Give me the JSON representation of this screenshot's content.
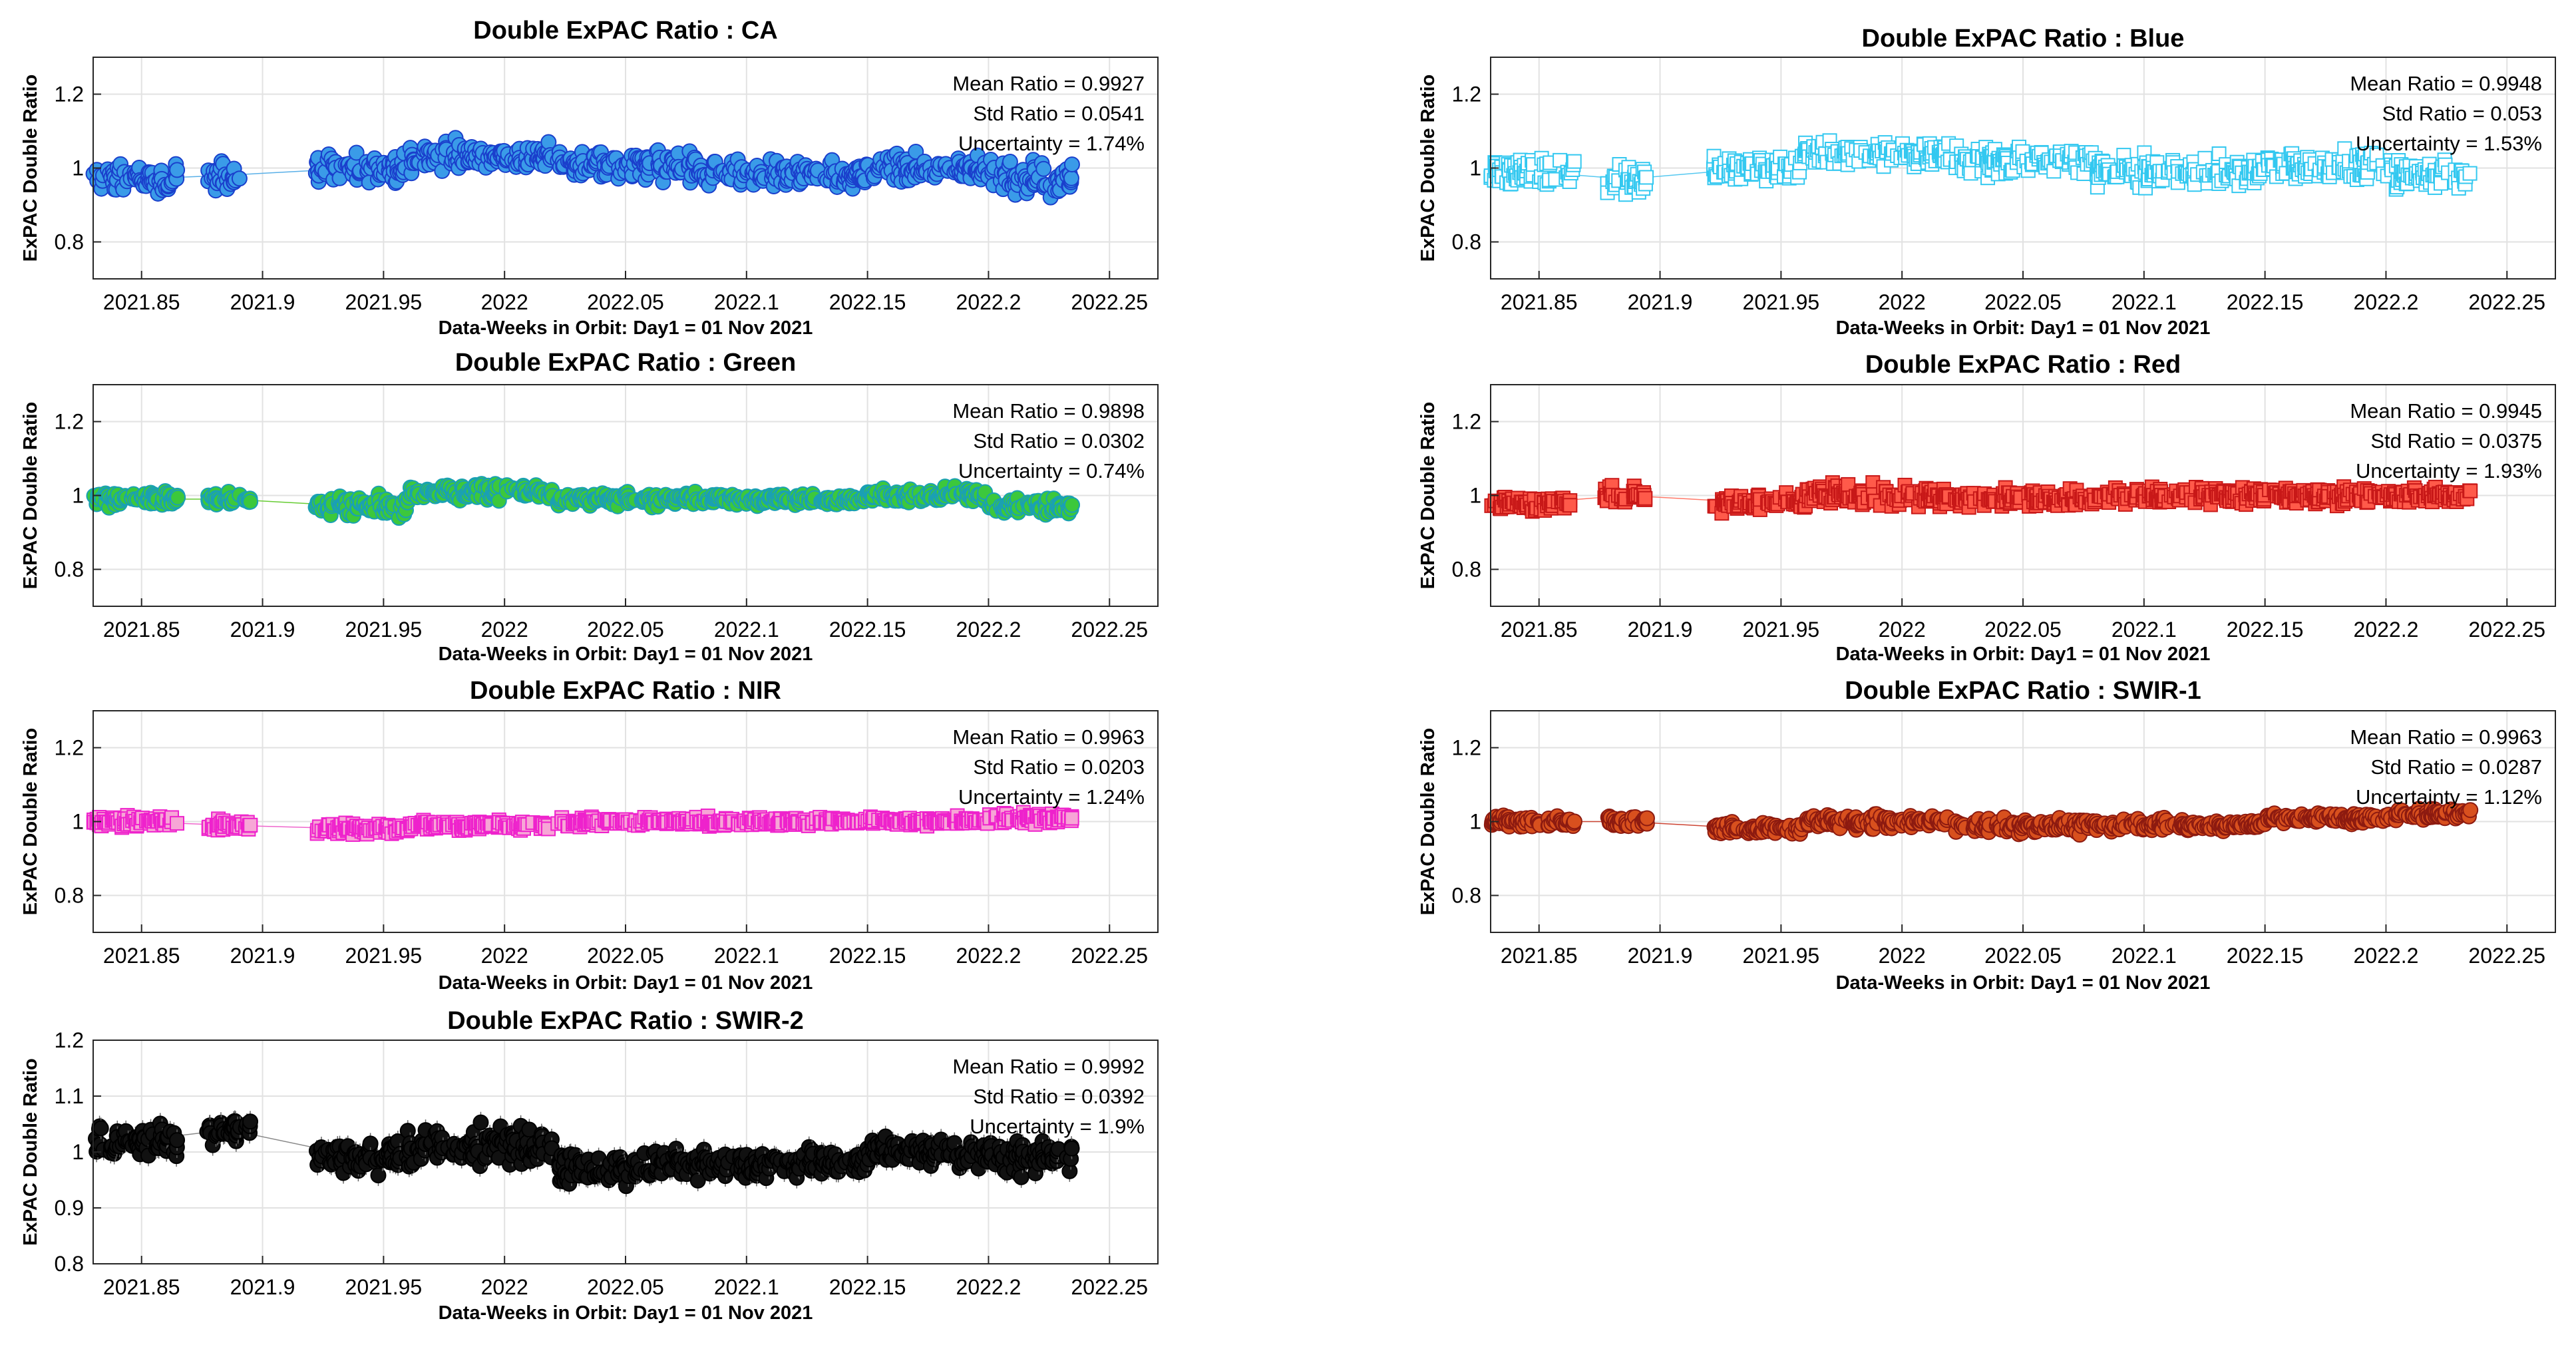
{
  "figure": {
    "title_prefix": "Double ExPAC Ratio :",
    "xlabel": "Data-Weeks in Orbit: Day1 = 01 Nov 2021",
    "ylabel": "ExPAC Double Ratio"
  },
  "chart_data": [
    {
      "type": "scatter",
      "band": "CA",
      "title": "Double ExPAC Ratio :   CA",
      "xlabel": "Data-Weeks in Orbit: Day1 = 01 Nov 2021",
      "ylabel": "ExPAC Double Ratio",
      "xlim": [
        2021.83,
        2022.27
      ],
      "ylim": [
        0.7,
        1.3
      ],
      "xticks": [
        2021.85,
        2021.9,
        2021.95,
        2022,
        2022.05,
        2022.1,
        2022.15,
        2022.2,
        2022.25
      ],
      "xticklabels": [
        "2021.85",
        "2021.9",
        "2021.95",
        "2022",
        "2022.05",
        "2022.1",
        "2022.15",
        "2022.2",
        "2022.25"
      ],
      "yticks": [
        0.8,
        1.0,
        1.2
      ],
      "yticklabels": [
        "0.8",
        "1",
        "1.2"
      ],
      "mean_label": "Mean Ratio",
      "mean_value": "0.9927",
      "std_label": "Std Ratio",
      "std_value": "0.0541",
      "unc_label": "Uncertainty",
      "unc_value": "1.74%",
      "marker_color": "#3a9be8",
      "edge_color": "#1a3fcc",
      "line_color": "#5ab0e8",
      "marker": "circle",
      "segments": [
        [
          2021.83,
          2021.865,
          0.97,
          0.05
        ],
        [
          2021.877,
          2021.891,
          0.98,
          0.05
        ],
        [
          2021.922,
          2021.958,
          1.0,
          0.05
        ],
        [
          2021.958,
          2022.02,
          1.03,
          0.055
        ],
        [
          2022.022,
          2022.08,
          1.01,
          0.055
        ],
        [
          2022.08,
          2022.15,
          0.98,
          0.05
        ],
        [
          2022.15,
          2022.2,
          1.0,
          0.05
        ],
        [
          2022.2,
          2022.235,
          0.97,
          0.06
        ]
      ]
    },
    {
      "type": "scatter",
      "band": "Blue",
      "title": "Double ExPAC Ratio :   Blue",
      "xlabel": "Data-Weeks in Orbit: Day1 = 01 Nov 2021",
      "ylabel": "ExPAC Double Ratio",
      "xlim": [
        2021.83,
        2022.27
      ],
      "ylim": [
        0.7,
        1.3
      ],
      "xticks": [
        2021.85,
        2021.9,
        2021.95,
        2022,
        2022.05,
        2022.1,
        2022.15,
        2022.2,
        2022.25
      ],
      "xticklabels": [
        "2021.85",
        "2021.9",
        "2021.95",
        "2022",
        "2022.05",
        "2022.1",
        "2022.15",
        "2022.2",
        "2022.25"
      ],
      "yticks": [
        0.8,
        1.0,
        1.2
      ],
      "yticklabels": [
        "0.8",
        "1",
        "1.2"
      ],
      "mean_label": "Mean Ratio",
      "mean_value": "0.9948",
      "std_label": "Std Ratio",
      "std_value": "0.053",
      "unc_label": "Uncertainty",
      "unc_value": "1.53%",
      "marker_color": "#ffffff",
      "edge_color": "#33c8f0",
      "line_color": "#55c8f0",
      "marker": "square",
      "segments": [
        [
          2021.83,
          2021.865,
          0.99,
          0.05
        ],
        [
          2021.877,
          2021.895,
          0.97,
          0.05
        ],
        [
          2021.922,
          2021.958,
          1.0,
          0.05
        ],
        [
          2021.958,
          2022.02,
          1.04,
          0.05
        ],
        [
          2022.022,
          2022.08,
          1.02,
          0.05
        ],
        [
          2022.08,
          2022.15,
          0.99,
          0.05
        ],
        [
          2022.15,
          2022.2,
          1.01,
          0.05
        ],
        [
          2022.2,
          2022.235,
          0.98,
          0.06
        ]
      ]
    },
    {
      "type": "scatter",
      "band": "Green",
      "title": "Double ExPAC Ratio :   Green",
      "xlabel": "Data-Weeks in Orbit: Day1 = 01 Nov 2021",
      "ylabel": "ExPAC Double Ratio",
      "xlim": [
        2021.83,
        2022.27
      ],
      "ylim": [
        0.7,
        1.3
      ],
      "xticks": [
        2021.85,
        2021.9,
        2021.95,
        2022,
        2022.05,
        2022.1,
        2022.15,
        2022.2,
        2022.25
      ],
      "xticklabels": [
        "2021.85",
        "2021.9",
        "2021.95",
        "2022",
        "2022.05",
        "2022.1",
        "2022.15",
        "2022.2",
        "2022.25"
      ],
      "yticks": [
        0.8,
        1.0,
        1.2
      ],
      "yticklabels": [
        "0.8",
        "1",
        "1.2"
      ],
      "mean_label": "Mean Ratio",
      "mean_value": "0.9898",
      "std_label": "Std Ratio",
      "std_value": "0.0302",
      "unc_label": "Uncertainty",
      "unc_value": "0.74%",
      "marker_color": "#3cc83c",
      "edge_color": "#1aa0b4",
      "line_color": "#66cc33",
      "marker": "circle",
      "segments": [
        [
          2021.83,
          2021.865,
          0.99,
          0.025
        ],
        [
          2021.877,
          2021.895,
          0.99,
          0.02
        ],
        [
          2021.922,
          2021.96,
          0.97,
          0.035
        ],
        [
          2021.96,
          2022.02,
          1.01,
          0.03
        ],
        [
          2022.022,
          2022.08,
          0.99,
          0.025
        ],
        [
          2022.08,
          2022.15,
          0.99,
          0.02
        ],
        [
          2022.15,
          2022.2,
          1.0,
          0.025
        ],
        [
          2022.2,
          2022.235,
          0.97,
          0.03
        ]
      ]
    },
    {
      "type": "scatter",
      "band": "Red",
      "title": "Double ExPAC Ratio :   Red",
      "xlabel": "Data-Weeks in Orbit: Day1 = 01 Nov 2021",
      "ylabel": "ExPAC Double Ratio",
      "xlim": [
        2021.83,
        2022.27
      ],
      "ylim": [
        0.7,
        1.3
      ],
      "xticks": [
        2021.85,
        2021.9,
        2021.95,
        2022,
        2022.05,
        2022.1,
        2022.15,
        2022.2,
        2022.25
      ],
      "xticklabels": [
        "2021.85",
        "2021.9",
        "2021.95",
        "2022",
        "2022.05",
        "2022.1",
        "2022.15",
        "2022.2",
        "2022.25"
      ],
      "yticks": [
        0.8,
        1.0,
        1.2
      ],
      "yticklabels": [
        "0.8",
        "1",
        "1.2"
      ],
      "mean_label": "Mean Ratio",
      "mean_value": "0.9945",
      "std_label": "Std Ratio",
      "std_value": "0.0375",
      "unc_label": "Uncertainty",
      "unc_value": "1.93%",
      "marker_color": "#ff5a4a",
      "edge_color": "#c81818",
      "line_color": "#ff7a6a",
      "marker": "square",
      "segments": [
        [
          2021.83,
          2021.865,
          0.98,
          0.03
        ],
        [
          2021.877,
          2021.895,
          1.0,
          0.035
        ],
        [
          2021.922,
          2021.96,
          0.98,
          0.035
        ],
        [
          2021.96,
          2022.02,
          1.0,
          0.04
        ],
        [
          2022.022,
          2022.08,
          0.99,
          0.03
        ],
        [
          2022.08,
          2022.15,
          1.0,
          0.03
        ],
        [
          2022.15,
          2022.2,
          1.0,
          0.03
        ],
        [
          2022.2,
          2022.235,
          1.0,
          0.03
        ]
      ]
    },
    {
      "type": "scatter",
      "band": "NIR",
      "title": "Double ExPAC Ratio :   NIR",
      "xlabel": "Data-Weeks in Orbit: Day1 = 01 Nov 2021",
      "ylabel": "ExPAC Double Ratio",
      "xlim": [
        2021.83,
        2022.27
      ],
      "ylim": [
        0.7,
        1.3
      ],
      "xticks": [
        2021.85,
        2021.9,
        2021.95,
        2022,
        2022.05,
        2022.1,
        2022.15,
        2022.2,
        2022.25
      ],
      "xticklabels": [
        "2021.85",
        "2021.9",
        "2021.95",
        "2022",
        "2022.05",
        "2022.1",
        "2022.15",
        "2022.2",
        "2022.25"
      ],
      "yticks": [
        0.8,
        1.0,
        1.2
      ],
      "yticklabels": [
        "0.8",
        "1",
        "1.2"
      ],
      "mean_label": "Mean Ratio",
      "mean_value": "0.9963",
      "std_label": "Std Ratio",
      "std_value": "0.0203",
      "unc_label": "Uncertainty",
      "unc_value": "1.24%",
      "marker_color": "#f7a6d6",
      "edge_color": "#ee22cc",
      "line_color": "#ee66cc",
      "marker": "square",
      "segments": [
        [
          2021.83,
          2021.865,
          1.0,
          0.02
        ],
        [
          2021.877,
          2021.895,
          0.99,
          0.02
        ],
        [
          2021.922,
          2021.96,
          0.98,
          0.02
        ],
        [
          2021.96,
          2022.02,
          0.99,
          0.02
        ],
        [
          2022.022,
          2022.08,
          1.0,
          0.015
        ],
        [
          2022.08,
          2022.15,
          1.0,
          0.015
        ],
        [
          2022.15,
          2022.2,
          1.0,
          0.015
        ],
        [
          2022.2,
          2022.235,
          1.01,
          0.02
        ]
      ]
    },
    {
      "type": "scatter",
      "band": "SWIR-1",
      "title": "Double ExPAC Ratio :   SWIR-1",
      "xlabel": "Data-Weeks in Orbit: Day1 = 01 Nov 2021",
      "ylabel": "ExPAC Double Ratio",
      "xlim": [
        2021.83,
        2022.27
      ],
      "ylim": [
        0.7,
        1.3
      ],
      "xticks": [
        2021.85,
        2021.9,
        2021.95,
        2022,
        2022.05,
        2022.1,
        2022.15,
        2022.2,
        2022.25
      ],
      "xticklabels": [
        "2021.85",
        "2021.9",
        "2021.95",
        "2022",
        "2022.05",
        "2022.1",
        "2022.15",
        "2022.2",
        "2022.25"
      ],
      "yticks": [
        0.8,
        1.0,
        1.2
      ],
      "yticklabels": [
        "0.8",
        "1",
        "1.2"
      ],
      "mean_label": "Mean Ratio",
      "mean_value": "0.9963",
      "std_label": "Std Ratio",
      "std_value": "0.0287",
      "unc_label": "Uncertainty",
      "unc_value": "1.12%",
      "marker_color": "#d8501e",
      "edge_color": "#8c1a10",
      "line_color": "#cc4433",
      "marker": "circle",
      "segments": [
        [
          2021.83,
          2021.865,
          1.0,
          0.02
        ],
        [
          2021.877,
          2021.895,
          1.0,
          0.02
        ],
        [
          2021.922,
          2021.96,
          0.98,
          0.025
        ],
        [
          2021.96,
          2022.02,
          1.0,
          0.025
        ],
        [
          2022.022,
          2022.08,
          0.99,
          0.03
        ],
        [
          2022.08,
          2022.15,
          0.99,
          0.02
        ],
        [
          2022.15,
          2022.2,
          1.01,
          0.02
        ],
        [
          2022.2,
          2022.235,
          1.02,
          0.02
        ]
      ]
    },
    {
      "type": "scatter",
      "band": "SWIR-2",
      "title": "Double ExPAC Ratio :   SWIR-2",
      "xlabel": "Data-Weeks in Orbit: Day1 = 01 Nov 2021",
      "ylabel": "ExPAC Double Ratio",
      "xlim": [
        2021.83,
        2022.27
      ],
      "ylim": [
        0.8,
        1.2
      ],
      "xticks": [
        2021.85,
        2021.9,
        2021.95,
        2022,
        2022.05,
        2022.1,
        2022.15,
        2022.2,
        2022.25
      ],
      "xticklabels": [
        "2021.85",
        "2021.9",
        "2021.95",
        "2022",
        "2022.05",
        "2022.1",
        "2022.15",
        "2022.2",
        "2022.25"
      ],
      "yticks": [
        0.8,
        0.9,
        1.0,
        1.1,
        1.2
      ],
      "yticklabels": [
        "0.8",
        "0.9",
        "1",
        "1.1",
        "1.2"
      ],
      "mean_label": "Mean Ratio",
      "mean_value": "0.9992",
      "std_label": "Std Ratio",
      "std_value": "0.0392",
      "unc_label": "Uncertainty",
      "unc_value": "1.9%",
      "marker_color": "#111111",
      "edge_color": "#000000",
      "line_color": "#888888",
      "marker": "circle",
      "errorbars": true,
      "segments": [
        [
          2021.83,
          2021.865,
          1.02,
          0.04
        ],
        [
          2021.877,
          2021.895,
          1.04,
          0.03
        ],
        [
          2021.922,
          2021.96,
          0.99,
          0.04
        ],
        [
          2021.96,
          2022.02,
          1.01,
          0.045
        ],
        [
          2022.022,
          2022.06,
          0.97,
          0.04
        ],
        [
          2022.06,
          2022.15,
          0.98,
          0.035
        ],
        [
          2022.15,
          2022.2,
          1.0,
          0.035
        ],
        [
          2022.2,
          2022.235,
          0.99,
          0.04
        ]
      ]
    }
  ]
}
